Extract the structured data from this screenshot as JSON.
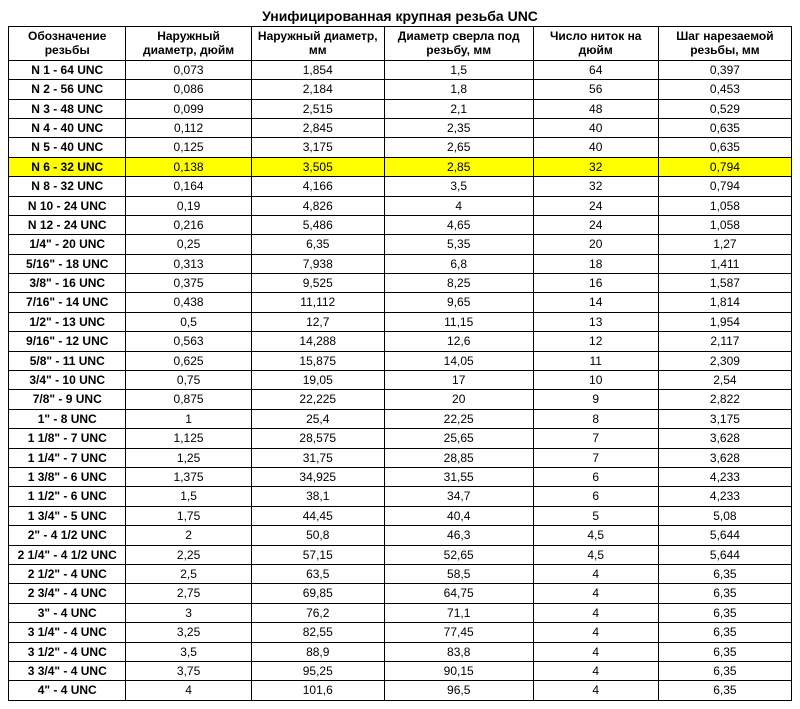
{
  "title": "Унифицированная крупная резьба UNC",
  "columns": [
    "Обозначение резьбы",
    "Наружный диаметр, дюйм",
    "Наружный диаметр, мм",
    "Диаметр сверла под резьбу, мм",
    "Число ниток на дюйм",
    "Шаг нарезаемой резьбы, мм"
  ],
  "col_widths": [
    "15%",
    "16%",
    "17%",
    "19%",
    "16%",
    "17%"
  ],
  "highlight_color": "#ffff00",
  "rows": [
    {
      "c": [
        "N 1 - 64 UNC",
        "0,073",
        "1,854",
        "1,5",
        "64",
        "0,397"
      ],
      "hl": false
    },
    {
      "c": [
        "N 2 - 56 UNC",
        "0,086",
        "2,184",
        "1,8",
        "56",
        "0,453"
      ],
      "hl": false
    },
    {
      "c": [
        "N 3 - 48 UNC",
        "0,099",
        "2,515",
        "2,1",
        "48",
        "0,529"
      ],
      "hl": false
    },
    {
      "c": [
        "N 4 - 40 UNC",
        "0,112",
        "2,845",
        "2,35",
        "40",
        "0,635"
      ],
      "hl": false
    },
    {
      "c": [
        "N 5 - 40 UNC",
        "0,125",
        "3,175",
        "2,65",
        "40",
        "0,635"
      ],
      "hl": false
    },
    {
      "c": [
        "N 6 - 32 UNC",
        "0,138",
        "3,505",
        "2,85",
        "32",
        "0,794"
      ],
      "hl": true
    },
    {
      "c": [
        "N 8 - 32 UNC",
        "0,164",
        "4,166",
        "3,5",
        "32",
        "0,794"
      ],
      "hl": false
    },
    {
      "c": [
        "N 10 - 24 UNC",
        "0,19",
        "4,826",
        "4",
        "24",
        "1,058"
      ],
      "hl": false
    },
    {
      "c": [
        "N 12 - 24 UNC",
        "0,216",
        "5,486",
        "4,65",
        "24",
        "1,058"
      ],
      "hl": false
    },
    {
      "c": [
        "1/4\" - 20 UNC",
        "0,25",
        "6,35",
        "5,35",
        "20",
        "1,27"
      ],
      "hl": false
    },
    {
      "c": [
        "5/16\" - 18 UNC",
        "0,313",
        "7,938",
        "6,8",
        "18",
        "1,411"
      ],
      "hl": false
    },
    {
      "c": [
        "3/8\" - 16 UNC",
        "0,375",
        "9,525",
        "8,25",
        "16",
        "1,587"
      ],
      "hl": false
    },
    {
      "c": [
        "7/16\" - 14 UNC",
        "0,438",
        "11,112",
        "9,65",
        "14",
        "1,814"
      ],
      "hl": false
    },
    {
      "c": [
        "1/2\" - 13 UNC",
        "0,5",
        "12,7",
        "11,15",
        "13",
        "1,954"
      ],
      "hl": false
    },
    {
      "c": [
        "9/16\" - 12 UNC",
        "0,563",
        "14,288",
        "12,6",
        "12",
        "2,117"
      ],
      "hl": false
    },
    {
      "c": [
        "5/8\" - 11 UNC",
        "0,625",
        "15,875",
        "14,05",
        "11",
        "2,309"
      ],
      "hl": false
    },
    {
      "c": [
        "3/4\" - 10 UNC",
        "0,75",
        "19,05",
        "17",
        "10",
        "2,54"
      ],
      "hl": false
    },
    {
      "c": [
        "7/8\" - 9 UNC",
        "0,875",
        "22,225",
        "20",
        "9",
        "2,822"
      ],
      "hl": false
    },
    {
      "c": [
        "1\" - 8 UNC",
        "1",
        "25,4",
        "22,25",
        "8",
        "3,175"
      ],
      "hl": false
    },
    {
      "c": [
        "1 1/8\" - 7 UNC",
        "1,125",
        "28,575",
        "25,65",
        "7",
        "3,628"
      ],
      "hl": false
    },
    {
      "c": [
        "1 1/4\" - 7 UNC",
        "1,25",
        "31,75",
        "28,85",
        "7",
        "3,628"
      ],
      "hl": false
    },
    {
      "c": [
        "1 3/8\" - 6 UNC",
        "1,375",
        "34,925",
        "31,55",
        "6",
        "4,233"
      ],
      "hl": false
    },
    {
      "c": [
        "1 1/2\" - 6 UNC",
        "1,5",
        "38,1",
        "34,7",
        "6",
        "4,233"
      ],
      "hl": false
    },
    {
      "c": [
        "1 3/4\" - 5 UNC",
        "1,75",
        "44,45",
        "40,4",
        "5",
        "5,08"
      ],
      "hl": false
    },
    {
      "c": [
        "2\" - 4 1/2 UNC",
        "2",
        "50,8",
        "46,3",
        "4,5",
        "5,644"
      ],
      "hl": false
    },
    {
      "c": [
        "2 1/4\" - 4 1/2 UNC",
        "2,25",
        "57,15",
        "52,65",
        "4,5",
        "5,644"
      ],
      "hl": false
    },
    {
      "c": [
        "2 1/2\" - 4 UNC",
        "2,5",
        "63,5",
        "58,5",
        "4",
        "6,35"
      ],
      "hl": false
    },
    {
      "c": [
        "2 3/4\" - 4 UNC",
        "2,75",
        "69,85",
        "64,75",
        "4",
        "6,35"
      ],
      "hl": false
    },
    {
      "c": [
        "3\" - 4 UNC",
        "3",
        "76,2",
        "71,1",
        "4",
        "6,35"
      ],
      "hl": false
    },
    {
      "c": [
        "3 1/4\" - 4 UNC",
        "3,25",
        "82,55",
        "77,45",
        "4",
        "6,35"
      ],
      "hl": false
    },
    {
      "c": [
        "3 1/2\" - 4 UNC",
        "3,5",
        "88,9",
        "83,8",
        "4",
        "6,35"
      ],
      "hl": false
    },
    {
      "c": [
        "3 3/4\" - 4 UNC",
        "3,75",
        "95,25",
        "90,15",
        "4",
        "6,35"
      ],
      "hl": false
    },
    {
      "c": [
        "4\" - 4 UNC",
        "4",
        "101,6",
        "96,5",
        "4",
        "6,35"
      ],
      "hl": false
    }
  ]
}
